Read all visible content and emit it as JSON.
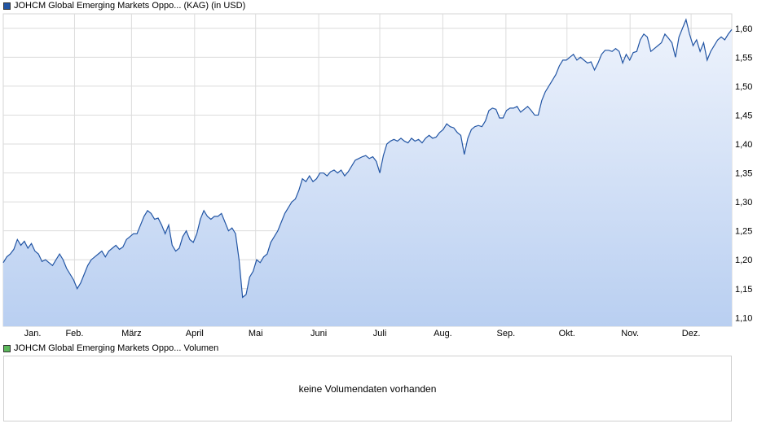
{
  "legend": {
    "price_label": "JOHCM Global Emerging Markets Oppo... (KAG)  (in USD)",
    "price_color": "#2255a4",
    "volume_label": "JOHCM Global Emerging Markets Oppo... Volumen",
    "volume_color": "#5cb85c"
  },
  "volume_panel": {
    "message": "keine Volumendaten vorhanden"
  },
  "chart_data": {
    "type": "area",
    "title": "",
    "xlabel": "",
    "ylabel": "",
    "x_ticks": [
      "Jan.",
      "Feb.",
      "März",
      "April",
      "Mai",
      "Juni",
      "Juli",
      "Aug.",
      "Sep.",
      "Okt.",
      "Nov.",
      "Dez."
    ],
    "y_ticks": [
      "1,10",
      "1,15",
      "1,20",
      "1,25",
      "1,30",
      "1,35",
      "1,40",
      "1,45",
      "1,50",
      "1,55",
      "1,60"
    ],
    "ylim": [
      1.085,
      1.625
    ],
    "grid": true,
    "y_axis_side": "right",
    "line_color": "#2255a4",
    "fill_top_color": "#eef3fc",
    "fill_bottom_color": "#b9cff1",
    "series": [
      {
        "values": [
          1.195,
          1.205,
          1.21,
          1.218,
          1.235,
          1.225,
          1.232,
          1.22,
          1.228,
          1.215,
          1.21,
          1.197,
          1.2,
          1.195,
          1.19,
          1.2,
          1.21,
          1.2,
          1.185,
          1.175,
          1.165,
          1.15,
          1.16,
          1.175,
          1.19,
          1.2,
          1.205,
          1.21,
          1.215,
          1.205,
          1.215,
          1.22,
          1.225,
          1.218,
          1.222,
          1.235,
          1.24,
          1.245,
          1.245,
          1.26,
          1.275,
          1.285,
          1.28,
          1.27,
          1.272,
          1.26,
          1.245,
          1.26,
          1.225,
          1.215,
          1.22,
          1.24,
          1.25,
          1.235,
          1.23,
          1.245,
          1.27,
          1.285,
          1.275,
          1.27,
          1.275,
          1.275,
          1.28,
          1.265,
          1.25,
          1.255,
          1.245,
          1.2,
          1.135,
          1.14,
          1.17,
          1.18,
          1.2,
          1.195,
          1.205,
          1.21,
          1.23,
          1.24,
          1.25,
          1.265,
          1.28,
          1.29,
          1.3,
          1.305,
          1.32,
          1.34,
          1.335,
          1.345,
          1.335,
          1.34,
          1.35,
          1.35,
          1.345,
          1.352,
          1.355,
          1.35,
          1.355,
          1.345,
          1.352,
          1.362,
          1.372,
          1.375,
          1.378,
          1.38,
          1.375,
          1.378,
          1.37,
          1.35,
          1.38,
          1.4,
          1.405,
          1.408,
          1.405,
          1.41,
          1.405,
          1.402,
          1.41,
          1.405,
          1.408,
          1.402,
          1.41,
          1.415,
          1.41,
          1.412,
          1.42,
          1.425,
          1.435,
          1.43,
          1.428,
          1.42,
          1.415,
          1.382,
          1.41,
          1.425,
          1.43,
          1.432,
          1.43,
          1.44,
          1.458,
          1.462,
          1.46,
          1.445,
          1.445,
          1.458,
          1.462,
          1.462,
          1.465,
          1.455,
          1.46,
          1.465,
          1.458,
          1.45,
          1.45,
          1.475,
          1.49,
          1.5,
          1.51,
          1.52,
          1.535,
          1.545,
          1.545,
          1.55,
          1.555,
          1.545,
          1.55,
          1.545,
          1.54,
          1.542,
          1.528,
          1.54,
          1.555,
          1.562,
          1.562,
          1.56,
          1.565,
          1.56,
          1.54,
          1.555,
          1.545,
          1.558,
          1.56,
          1.58,
          1.59,
          1.585,
          1.56,
          1.565,
          1.57,
          1.575,
          1.59,
          1.583,
          1.575,
          1.55,
          1.585,
          1.6,
          1.615,
          1.59,
          1.57,
          1.58,
          1.56,
          1.575,
          1.545,
          1.56,
          1.57,
          1.58,
          1.585,
          1.58,
          1.59,
          1.598
        ]
      }
    ]
  }
}
